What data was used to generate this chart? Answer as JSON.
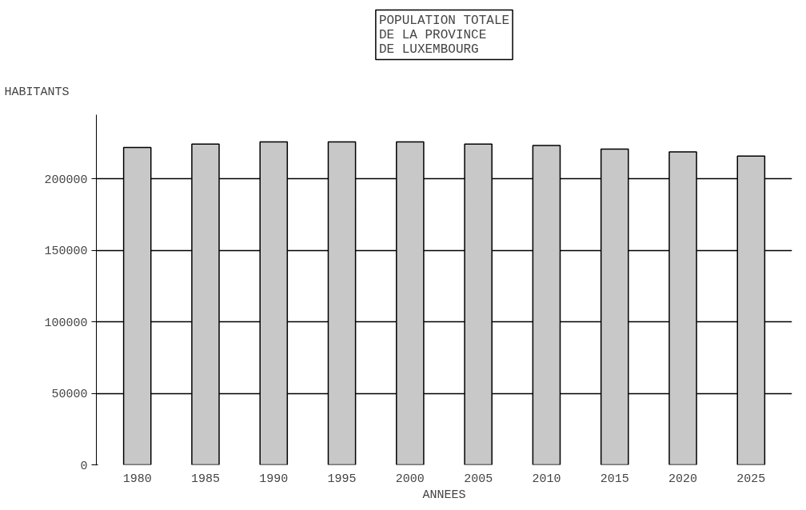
{
  "chart_data": {
    "type": "bar",
    "title": "POPULATION TOTALE\nDE LA PROVINCE\nDE LUXEMBOURG",
    "xlabel": "ANNEES",
    "ylabel": "HABITANTS",
    "categories": [
      "1980",
      "1985",
      "1990",
      "1995",
      "2000",
      "2005",
      "2010",
      "2015",
      "2020",
      "2025"
    ],
    "values": [
      222000,
      224500,
      226000,
      226000,
      226000,
      224500,
      223500,
      221000,
      219000,
      216000
    ],
    "color": "#c8c8c8",
    "ylim": [
      0,
      245000
    ],
    "yticks": [
      0,
      50000,
      100000,
      150000,
      200000
    ],
    "grid": "y"
  }
}
